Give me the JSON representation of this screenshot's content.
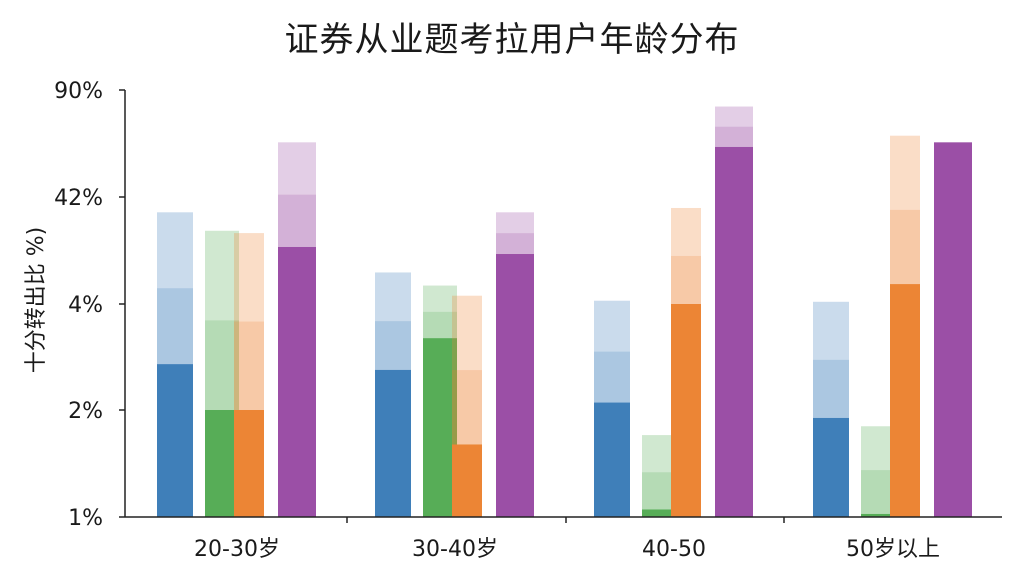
{
  "chart_data": {
    "type": "bar",
    "title": "证券从业题考拉用户年龄分布",
    "xlabel": "",
    "ylabel": "十分转出比 %)",
    "y_scale": "log",
    "yticks": [
      1,
      2,
      4,
      42,
      90
    ],
    "ytick_labels": [
      "1%",
      "2%",
      "4%",
      "42%",
      "90%"
    ],
    "ylim": [
      1,
      90
    ],
    "categories": [
      "20-30岁",
      "30-40岁",
      "40-50",
      "50岁以上"
    ],
    "grid": false,
    "legend": "none",
    "series": [
      {
        "color": "#3f7fb9",
        "values": [
          2.7,
          2.6,
          2.1,
          1.9
        ],
        "faded_upper": [
          30,
          8,
          4.3,
          4.2
        ]
      },
      {
        "color": "#57ad57",
        "values": [
          2.0,
          3.2,
          1.05,
          1.02
        ],
        "faded_upper": [
          20,
          6,
          1.7,
          1.8
        ]
      },
      {
        "color": "#ec8535",
        "values": [
          2.0,
          1.6,
          4.0,
          6.2
        ],
        "faded_upper": [
          19,
          4.8,
          33,
          65
        ]
      },
      {
        "color": "#9b4fa6",
        "values": [
          14,
          12,
          60,
          62
        ],
        "faded_upper": [
          62,
          30,
          80,
          62
        ]
      }
    ]
  }
}
